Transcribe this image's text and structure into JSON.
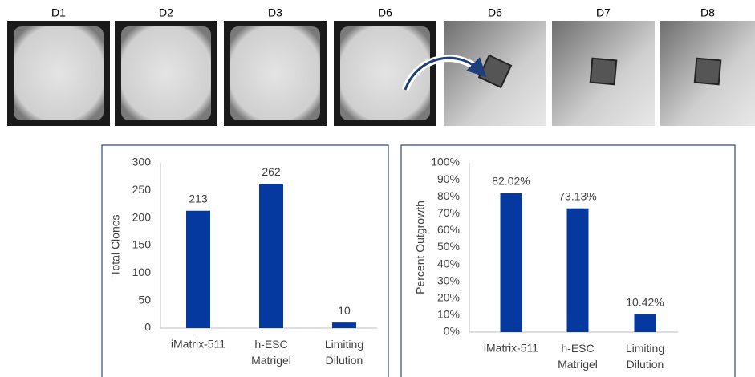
{
  "panels": [
    "D1",
    "D2",
    "D3",
    "D6",
    "D6",
    "D7",
    "D8"
  ],
  "chart_data": [
    {
      "type": "bar",
      "y_label": "Total Clones",
      "categories": [
        "iMatrix-511",
        "h-ESC Matrigel",
        "Limiting Dilution"
      ],
      "values": [
        213,
        262,
        10
      ],
      "color": "#06399f",
      "ylim": [
        0,
        300
      ],
      "yticks": [
        0,
        50,
        100,
        150,
        200,
        250,
        300
      ],
      "grid": false
    },
    {
      "type": "bar",
      "y_label": "Percent Outgrowth",
      "categories": [
        "iMatrix-511",
        "h-ESC Matrigel",
        "Limiting Dilution"
      ],
      "values": [
        82.02,
        73.13,
        10.42
      ],
      "value_labels": [
        "82.02%",
        "73.13%",
        "10.42%"
      ],
      "color": "#06399f",
      "ylim": [
        0,
        100
      ],
      "yticks": [
        {
          "value": 0,
          "label": "0%"
        },
        {
          "value": 10,
          "label": "10%"
        },
        {
          "value": 20,
          "label": "20%"
        },
        {
          "value": 30,
          "label": "30%"
        },
        {
          "value": 40,
          "label": "40%"
        },
        {
          "value": 50,
          "label": "50%"
        },
        {
          "value": 60,
          "label": "60%"
        },
        {
          "value": 70,
          "label": "70%"
        },
        {
          "value": 80,
          "label": "80%"
        },
        {
          "value": 90,
          "label": "90%"
        },
        {
          "value": 100,
          "label": "100%"
        }
      ],
      "grid": false
    }
  ]
}
